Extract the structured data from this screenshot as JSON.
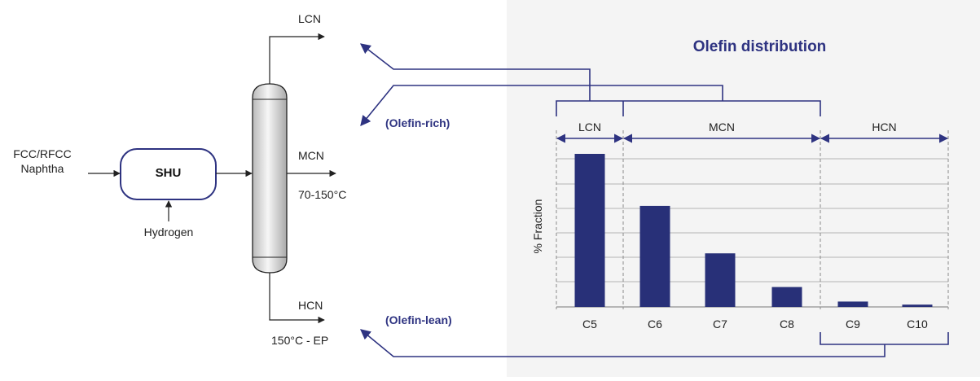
{
  "process": {
    "feed_line1": "FCC/RFCC",
    "feed_line2": "Naphtha",
    "unit": "SHU",
    "hydrogen": "Hydrogen",
    "lcn": "LCN",
    "mcn": "MCN",
    "mcn_range": "70-150°C",
    "hcn": "HCN",
    "hcn_range": "150°C - EP",
    "olefin_rich": "(Olefin-rich)",
    "olefin_lean": "(Olefin-lean)"
  },
  "chart_data": {
    "type": "bar",
    "title": "Olefin distribution",
    "ylabel": "% Fraction",
    "xlabel": "",
    "categories": [
      "C5",
      "C6",
      "C7",
      "C8",
      "C9",
      "C10"
    ],
    "values": [
      100,
      66,
      35,
      13,
      3.5,
      1.5
    ],
    "ylim": [
      0,
      100
    ],
    "grid": true,
    "ranges": [
      {
        "label": "LCN",
        "from": "C5",
        "to": "C5"
      },
      {
        "label": "MCN",
        "from": "C6",
        "to": "C8"
      },
      {
        "label": "HCN",
        "from": "C9",
        "to": "C10"
      }
    ]
  },
  "colors": {
    "navy": "#2e3381",
    "bar": "#283078",
    "panel": "#f4f4f4",
    "line": "#222222",
    "grid": "#b4b4b4"
  }
}
